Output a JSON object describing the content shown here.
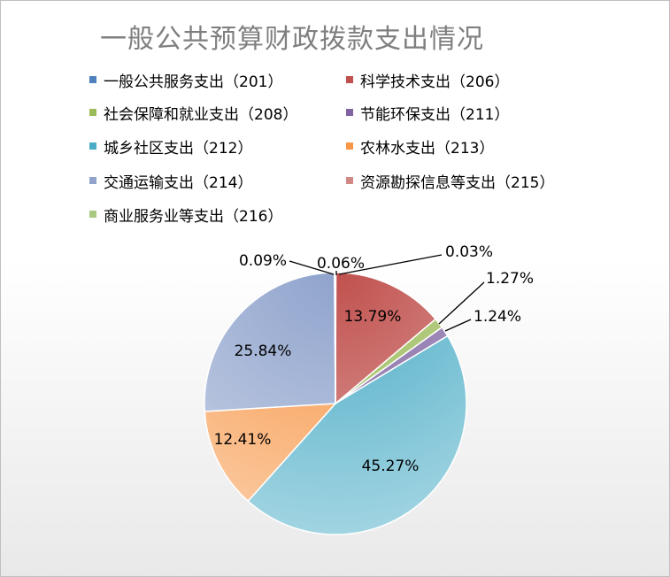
{
  "chart_data": {
    "type": "pie",
    "title": "一般公共预算财政拨款支出情况",
    "categories": [
      "一般公共服务支出（201）",
      "科学技术支出（206）",
      "社会保障和就业支出（208）",
      "节能环保支出（211）",
      "城乡社区支出（212）",
      "农林水支出（213）",
      "交通运输支出（214）",
      "资源勘探信息等支出（215）",
      "商业服务业等支出（216）"
    ],
    "values": [
      0.06,
      13.79,
      1.27,
      1.24,
      45.27,
      12.41,
      25.84,
      0.09,
      0.03
    ],
    "value_labels": [
      "0.06%",
      "13.79%",
      "1.27%",
      "1.24%",
      "45.27%",
      "12.41%",
      "25.84%",
      "0.09%",
      "0.03%"
    ],
    "colors": [
      "#4F81BD",
      "#C0504D",
      "#9BBB59",
      "#8064A2",
      "#4BACC6",
      "#F79646",
      "#8FA3CC",
      "#D28985",
      "#A8C97F"
    ],
    "legend_position": "top"
  }
}
